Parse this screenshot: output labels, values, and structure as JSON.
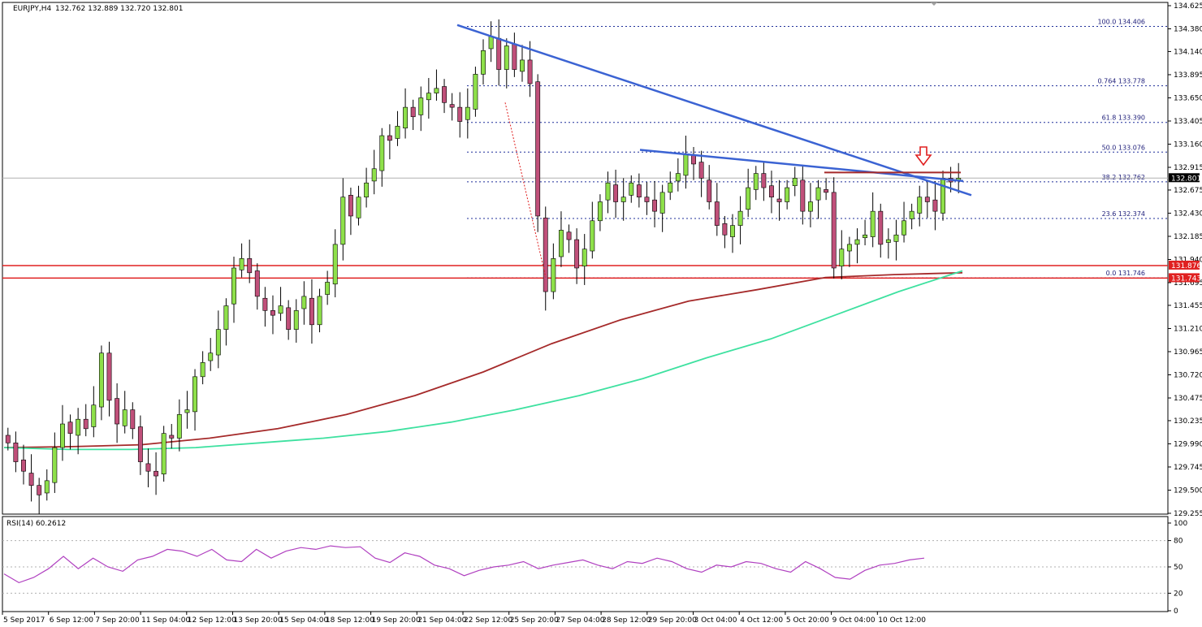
{
  "header": {
    "symbol": "EURJPY,H4",
    "ohlc": "132.762 132.889 132.720 132.801"
  },
  "rsi_header": "RSI(14) 60.2612",
  "colors": {
    "bull": "#8ee04a",
    "bear": "#c0507a",
    "ma_fast": "#a52a2a",
    "ma_slow": "#3ee1a0",
    "trendline": "#3b63d3",
    "support": "#e02020",
    "fib": "#1f2f9a",
    "rsi": "#b040c0",
    "arrow": "#e02020"
  },
  "chart_data": [
    {
      "type": "candlestick",
      "title": "EURJPY,H4",
      "y_ticks": [
        "134.625",
        "134.380",
        "134.140",
        "133.895",
        "133.650",
        "133.405",
        "133.160",
        "132.915",
        "132.675",
        "132.430",
        "132.185",
        "131.940",
        "131.695",
        "131.455",
        "131.210",
        "130.965",
        "130.720",
        "130.475",
        "130.235",
        "129.990",
        "129.745",
        "129.500",
        "129.255"
      ],
      "ylim": [
        129.255,
        134.625
      ],
      "x_labels": [
        "5 Sep 2017",
        "6 Sep 12:00",
        "7 Sep 20:00",
        "11 Sep 04:00",
        "12 Sep 12:00",
        "13 Sep 20:00",
        "15 Sep 04:00",
        "18 Sep 12:00",
        "19 Sep 20:00",
        "21 Sep 04:00",
        "22 Sep 12:00",
        "25 Sep 20:00",
        "27 Sep 04:00",
        "28 Sep 12:00",
        "29 Sep 20:00",
        "3 Oct 04:00",
        "4 Oct 12:00",
        "5 Oct 20:00",
        "9 Oct 04:00",
        "10 Oct 12:00"
      ],
      "closes": [
        130.0,
        129.8,
        129.7,
        129.55,
        129.45,
        129.6,
        129.95,
        130.2,
        130.1,
        130.25,
        130.15,
        130.4,
        130.95,
        130.45,
        130.2,
        130.35,
        130.15,
        129.8,
        129.7,
        129.65,
        130.1,
        130.05,
        130.3,
        130.35,
        130.7,
        130.85,
        130.95,
        131.2,
        131.45,
        131.85,
        131.95,
        131.8,
        131.55,
        131.4,
        131.35,
        131.45,
        131.2,
        131.4,
        131.55,
        131.25,
        131.55,
        131.7,
        132.1,
        132.6,
        132.4,
        132.6,
        132.75,
        132.9,
        133.25,
        133.2,
        133.35,
        133.55,
        133.45,
        133.65,
        133.7,
        133.75,
        133.6,
        133.55,
        133.4,
        133.55,
        133.9,
        134.15,
        134.3,
        133.95,
        134.2,
        133.95,
        134.05,
        133.8,
        132.4,
        131.6,
        131.95,
        132.25,
        132.15,
        131.85,
        132.05,
        132.35,
        132.55,
        132.75,
        132.55,
        132.6,
        132.75,
        132.6,
        132.55,
        132.45,
        132.65,
        132.75,
        132.85,
        133.05,
        132.95,
        132.8,
        132.55,
        132.3,
        132.2,
        132.3,
        132.45,
        132.7,
        132.85,
        132.7,
        132.6,
        132.55,
        132.7,
        132.8,
        132.45,
        132.55,
        132.7,
        132.65,
        131.85,
        132.05,
        132.1,
        132.15,
        132.2,
        132.45,
        132.1,
        132.15,
        132.2,
        132.35,
        132.45,
        132.6,
        132.55,
        132.45,
        132.8,
        132.76,
        132.8
      ],
      "series": [
        {
          "name": "",
          "values": [
            129.95,
            129.96,
            129.98,
            130.05,
            130.15,
            130.3,
            130.5,
            130.75,
            131.05,
            131.3,
            131.5,
            131.62,
            131.75,
            131.78,
            131.8
          ]
        },
        {
          "name": "",
          "values": [
            129.95,
            129.93,
            129.93,
            129.95,
            130.0,
            130.05,
            130.12,
            130.22,
            130.35,
            130.5,
            130.68,
            130.9,
            131.1,
            131.35,
            131.6,
            131.82
          ]
        }
      ],
      "fibonacci": [
        {
          "label": "100.0 134.406",
          "value": 134.406
        },
        {
          "label": "0.764 133.778",
          "value": 133.778
        },
        {
          "label": "61.8 133.390",
          "value": 133.39
        },
        {
          "label": "50.0 133.076",
          "value": 133.076
        },
        {
          "label": "38.2 132.762",
          "value": 132.762
        },
        {
          "label": "23.6 132.374",
          "value": 132.374
        },
        {
          "label": "0.0 131.746",
          "value": 131.746
        }
      ],
      "support_levels": [
        {
          "label": "131.876",
          "value": 131.876
        },
        {
          "label": "131.743",
          "value": 131.743
        }
      ],
      "current_price": {
        "label": "132.801",
        "value": 132.801
      }
    },
    {
      "type": "line",
      "title": "RSI(14) 60.2612",
      "y_ticks": [
        "100",
        "80",
        "50",
        "20",
        "0"
      ],
      "ylim": [
        0,
        100
      ],
      "values": [
        42,
        32,
        38,
        48,
        62,
        48,
        60,
        50,
        45,
        58,
        62,
        70,
        68,
        62,
        70,
        58,
        56,
        70,
        60,
        68,
        72,
        70,
        74,
        72,
        73,
        60,
        55,
        66,
        62,
        52,
        48,
        40,
        46,
        50,
        52,
        56,
        48,
        52,
        55,
        58,
        52,
        48,
        56,
        54,
        60,
        56,
        48,
        44,
        52,
        50,
        56,
        54,
        48,
        44,
        56,
        48,
        38,
        36,
        46,
        52,
        54,
        58,
        60
      ]
    }
  ]
}
